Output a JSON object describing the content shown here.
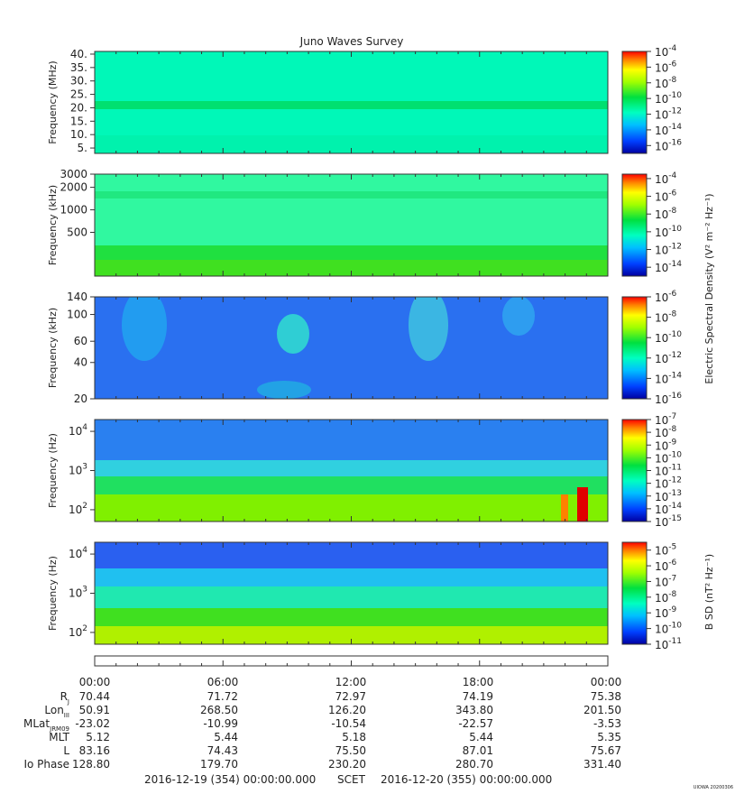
{
  "title": "Juno Waves Survey",
  "chart_data": [
    {
      "type": "heatmap",
      "panel": "1",
      "ylabel": "Frequency (MHz)",
      "yticks": [
        "40.",
        "35.",
        "30.",
        "25.",
        "20.",
        "15.",
        "10.",
        "5."
      ],
      "ytick_values": [
        40,
        35,
        30,
        25,
        20,
        15,
        10,
        5
      ],
      "ylim": [
        3,
        41
      ],
      "yscale": "linear",
      "colorbar_ticks": [
        "-4",
        "-6",
        "-8",
        "-10",
        "-12",
        "-14",
        "-16"
      ],
      "colorbar_range": [
        -17,
        -4
      ],
      "features": [
        {
          "frequency": 21.5,
          "note": "constant band"
        }
      ]
    },
    {
      "type": "heatmap",
      "panel": "2",
      "ylabel": "Frequency (kHz)",
      "yticks": [
        "3000",
        "2000",
        "1000",
        "500"
      ],
      "ytick_values": [
        3000,
        2000,
        1000,
        500
      ],
      "ylim": [
        130,
        3000
      ],
      "yscale": "log",
      "colorbar_ticks": [
        "-4",
        "-6",
        "-8",
        "-10",
        "-12",
        "-14"
      ],
      "colorbar_range": [
        -15,
        -3.5
      ],
      "colorbar_label": "Electric Spectral Density (V² m⁻² Hz⁻¹)"
    },
    {
      "type": "heatmap",
      "panel": "3",
      "ylabel": "Frequency (kHz)",
      "yticks": [
        "140",
        "100",
        "60",
        "40",
        "20"
      ],
      "ytick_values": [
        140,
        100,
        60,
        40,
        20
      ],
      "ylim": [
        20,
        140
      ],
      "yscale": "log",
      "colorbar_ticks": [
        "-6",
        "-8",
        "-10",
        "-12",
        "-14",
        "-16"
      ],
      "colorbar_range": [
        -16,
        -6
      ]
    },
    {
      "type": "heatmap",
      "panel": "4",
      "ylabel": "Frequency (Hz)",
      "yticks": [
        "4",
        "3",
        "2"
      ],
      "ytick_values": [
        10000,
        1000,
        100
      ],
      "ylim": [
        50,
        20000
      ],
      "yscale": "log",
      "colorbar_ticks": [
        "-7",
        "-8",
        "-9",
        "-10",
        "-11",
        "-12",
        "-13",
        "-14",
        "-15"
      ],
      "colorbar_range": [
        -15,
        -7
      ]
    },
    {
      "type": "heatmap",
      "panel": "5",
      "ylabel": "Frequency (Hz)",
      "yticks": [
        "4",
        "3",
        "2"
      ],
      "ytick_values": [
        10000,
        1000,
        100
      ],
      "ylim": [
        50,
        20000
      ],
      "yscale": "log",
      "colorbar_ticks": [
        "-5",
        "-6",
        "-7",
        "-8",
        "-9",
        "-10",
        "-11"
      ],
      "colorbar_range": [
        -11,
        -4.5
      ],
      "colorbar_label": "B SD (nT² Hz⁻¹)"
    }
  ],
  "x_axis": {
    "time_labels": [
      "00:00",
      "06:00",
      "12:00",
      "18:00",
      "00:00"
    ],
    "rows": [
      {
        "label": "R",
        "sub": "J",
        "values": [
          "70.44",
          "71.72",
          "72.97",
          "74.19",
          "75.38"
        ]
      },
      {
        "label": "Lon",
        "sub": "III",
        "values": [
          "50.91",
          "268.50",
          "126.20",
          "343.80",
          "201.50"
        ]
      },
      {
        "label": "MLat",
        "sub": "JRM09",
        "values": [
          "-23.02",
          "-10.99",
          "-10.54",
          "-22.57",
          "-3.53"
        ]
      },
      {
        "label": "MLT",
        "sub": "",
        "values": [
          "5.12",
          "5.44",
          "5.18",
          "5.44",
          "5.35"
        ]
      },
      {
        "label": "L",
        "sub": "",
        "values": [
          "83.16",
          "74.43",
          "75.50",
          "87.01",
          "75.67"
        ]
      },
      {
        "label": "Io Phase",
        "sub": "",
        "values": [
          "128.80",
          "179.70",
          "230.20",
          "280.70",
          "331.40"
        ]
      }
    ],
    "footer_start": "2016-12-19 (354) 00:00:00.000",
    "footer_mid": "SCET",
    "footer_end": "2016-12-20 (355) 00:00:00.000"
  },
  "credit": "UIOWA 20200306",
  "cb_base": "10",
  "ylabel_pow_base": "10"
}
